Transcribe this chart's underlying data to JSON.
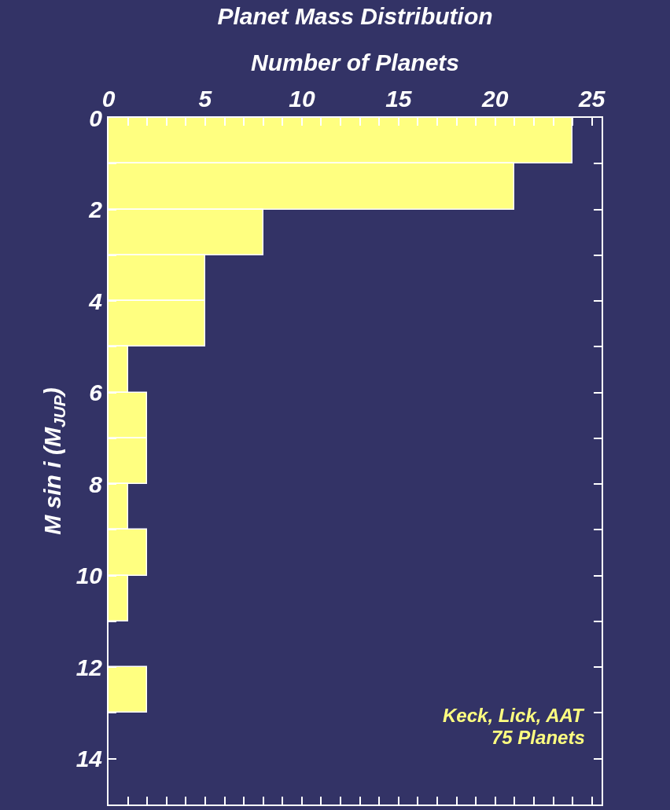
{
  "chart_data": {
    "type": "histogram",
    "orientation": "horizontal",
    "title": "Planet Mass Distribution",
    "xlabel": "Number of Planets",
    "ylabel": "M sin i (M$_{JUP}$)",
    "annotations": [
      "Keck, Lick, AAT",
      "75 Planets"
    ],
    "bins": [
      0,
      1,
      2,
      3,
      4,
      5,
      6,
      7,
      8,
      9,
      10,
      11,
      12,
      13
    ],
    "values": [
      24,
      21,
      8,
      5,
      5,
      1,
      2,
      2,
      1,
      2,
      1,
      0,
      2
    ],
    "color": "#ffff80",
    "ylim": [
      15,
      0
    ],
    "yticks": [
      0,
      {
        "value": 1,
        "label": null
      },
      2,
      {
        "value": 3,
        "label": null
      },
      4,
      {
        "value": 5,
        "label": null
      },
      6,
      {
        "value": 7,
        "label": null
      },
      8,
      {
        "value": 9,
        "label": null
      },
      10,
      {
        "value": 11,
        "label": null
      },
      12,
      {
        "value": 13,
        "label": null
      },
      14
    ],
    "xlim": [
      0,
      25.5
    ],
    "xticks": [
      0,
      {
        "value": 1,
        "label": null
      },
      {
        "value": 2,
        "label": null
      },
      {
        "value": 3,
        "label": null
      },
      {
        "value": 4,
        "label": null
      },
      5,
      {
        "value": 6,
        "label": null
      },
      {
        "value": 7,
        "label": null
      },
      {
        "value": 8,
        "label": null
      },
      {
        "value": 9,
        "label": null
      },
      10,
      {
        "value": 11,
        "label": null
      },
      {
        "value": 12,
        "label": null
      },
      {
        "value": 13,
        "label": null
      },
      {
        "value": 14,
        "label": null
      },
      15,
      {
        "value": 16,
        "label": null
      },
      {
        "value": 17,
        "label": null
      },
      {
        "value": 18,
        "label": null
      },
      {
        "value": 19,
        "label": null
      },
      20,
      {
        "value": 21,
        "label": null
      },
      {
        "value": 22,
        "label": null
      },
      {
        "value": 23,
        "label": null
      },
      {
        "value": 24,
        "label": null
      },
      25
    ],
    "grid": false,
    "legend": false
  }
}
